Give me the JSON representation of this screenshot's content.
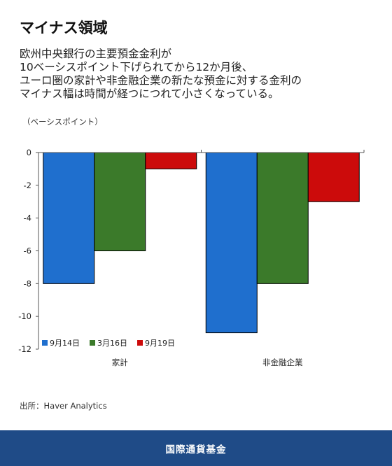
{
  "title": "マイナス領域",
  "subtitle_lines": [
    "欧州中央銀行の主要預金金利が",
    "10ベーシスポイント下げられてから12か月後、",
    "ユーロ圏の家計や非金融企業の新たな預金に対する金利の",
    "マイナス幅は時間が経つにつれて小さくなっている。"
  ],
  "unit_label": "（ベーシスポイント）",
  "source": "出所：Haver Analytics",
  "footer": "国際通貨基金",
  "chart_data": {
    "type": "bar",
    "categories": [
      "家計",
      "非金融企業"
    ],
    "series": [
      {
        "name": "9月14日",
        "color": "#1f6fce",
        "values": [
          -8,
          -11
        ]
      },
      {
        "name": "3月16日",
        "color": "#3b7a2a",
        "values": [
          -6,
          -8
        ]
      },
      {
        "name": "9月19日",
        "color": "#cc0b0b",
        "values": [
          -1,
          -3
        ]
      }
    ],
    "ylim": [
      -12,
      0
    ],
    "yticks": [
      0,
      -2,
      -4,
      -6,
      -8,
      -10,
      -12
    ],
    "legend_position": "bottom-left",
    "grid": false
  }
}
